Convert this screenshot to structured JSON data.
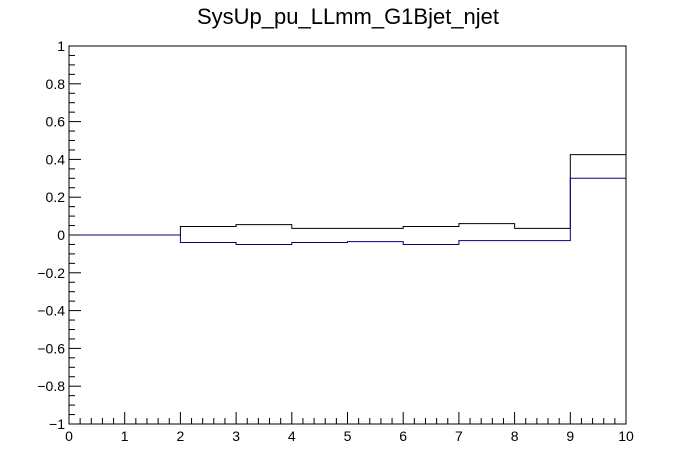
{
  "title": "SysUp_pu_LLmm_G1Bjet_njet",
  "chart_data": {
    "type": "line",
    "title": "SysUp_pu_LLmm_G1Bjet_njet",
    "xlabel": "",
    "ylabel": "",
    "xlim": [
      0,
      10
    ],
    "ylim": [
      -1,
      1
    ],
    "grid": false,
    "legend": "none",
    "line_color": "#000080",
    "black_line_color": "#000000",
    "x_ticks": [
      "0",
      "1",
      "2",
      "3",
      "4",
      "5",
      "6",
      "7",
      "8",
      "9",
      "10"
    ],
    "y_ticks": [
      "1",
      "0.8",
      "0.6",
      "0.4",
      "0.2",
      "0",
      "−0.2",
      "−0.4",
      "−0.6",
      "−0.8",
      "−1"
    ],
    "bin_edges": [
      0,
      1,
      2,
      3,
      4,
      5,
      6,
      7,
      8,
      9,
      10
    ],
    "series": [
      {
        "values": [
          0,
          0,
          0.045,
          0.055,
          0.035,
          0.035,
          0.045,
          0.06,
          0.035,
          0.425
        ]
      },
      {
        "values": [
          0,
          0,
          -0.04,
          -0.05,
          -0.04,
          -0.035,
          -0.05,
          -0.03,
          -0.03,
          0.3
        ]
      }
    ]
  }
}
